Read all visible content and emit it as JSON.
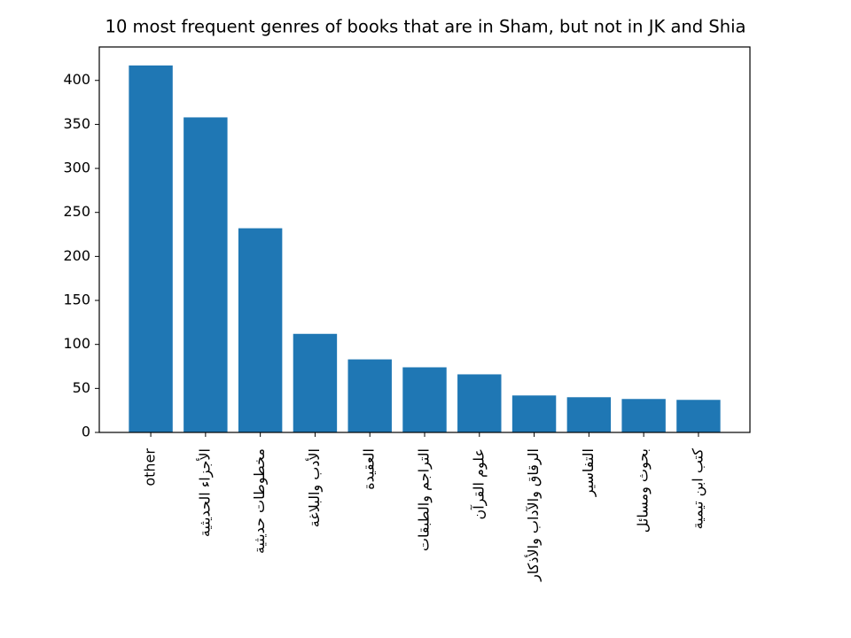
{
  "chart_data": {
    "type": "bar",
    "title": "10 most frequent genres of books that are in Sham, but not in JK and Shia",
    "categories": [
      "other",
      "الأجزاء الحديثية",
      "مخطوطات حديثية",
      "الأدب والبلاغة",
      "العقيدة",
      "التراجم والطبقات",
      "علوم القرآن",
      "الرقاق والآداب والأذكار",
      "التفاسير",
      "بحوث ومسائل",
      "كتب ابن تيمية"
    ],
    "values": [
      417,
      358,
      232,
      112,
      83,
      74,
      66,
      42,
      40,
      38,
      37
    ],
    "color": "#1f77b4",
    "ylim": [
      0,
      438
    ],
    "yticks": [
      0,
      50,
      100,
      150,
      200,
      250,
      300,
      350,
      400
    ],
    "grid": false
  }
}
